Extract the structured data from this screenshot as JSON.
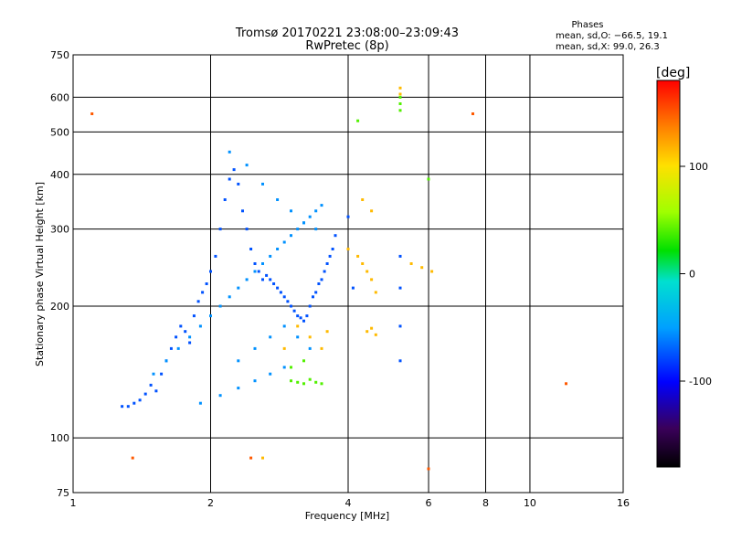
{
  "chart_data": {
    "type": "scatter",
    "title": "Tromsø 20170221 23:08:00–23:09:43",
    "subtitle": "RwPretec (8p)",
    "xlabel": "Frequency [MHz]",
    "ylabel": "Stationary phase Virtual Height [km]",
    "x_scale": "log",
    "y_scale": "log",
    "xlim": [
      1,
      16
    ],
    "ylim": [
      75,
      750
    ],
    "x_ticks": [
      1,
      2,
      4,
      6,
      8,
      10,
      16
    ],
    "y_ticks": [
      75,
      100,
      200,
      300,
      400,
      500,
      600,
      750
    ],
    "grid": true,
    "color_scale": {
      "label": "[deg]",
      "range": [
        -180,
        180
      ],
      "ticks": [
        100,
        0,
        -100
      ]
    },
    "phases_box": {
      "title": "Phases",
      "line1": "mean, sd,O: −66.5, 19.1",
      "line2": "mean, sd,X:  99.0, 26.3"
    },
    "series": [
      {
        "trace": "O",
        "color_value": -75,
        "x": [
          1.28,
          1.32,
          1.36,
          1.4,
          1.44,
          1.48,
          1.52,
          1.56,
          1.6,
          1.64,
          1.68,
          1.72,
          1.76,
          1.8,
          1.84,
          1.88,
          1.92,
          1.96,
          2.0,
          2.05,
          2.1,
          2.15,
          2.2,
          2.25,
          2.3,
          2.35,
          2.4,
          2.45,
          2.5,
          2.55,
          2.6,
          2.65,
          2.7,
          2.75,
          2.8,
          2.85,
          2.9,
          2.95,
          3.0,
          3.05,
          3.1,
          3.15,
          3.2,
          3.25,
          3.3,
          3.35,
          3.4,
          3.45,
          3.5,
          3.55,
          3.6,
          3.65,
          3.7,
          3.75,
          4.0,
          4.1,
          5.2,
          5.2,
          5.2,
          5.2
        ],
        "y": [
          118,
          118,
          120,
          122,
          126,
          132,
          128,
          140,
          150,
          160,
          170,
          180,
          175,
          165,
          190,
          205,
          215,
          225,
          240,
          260,
          300,
          350,
          390,
          410,
          380,
          330,
          300,
          270,
          250,
          240,
          230,
          235,
          230,
          225,
          220,
          215,
          210,
          205,
          200,
          195,
          190,
          188,
          185,
          190,
          200,
          210,
          215,
          225,
          230,
          240,
          250,
          260,
          270,
          290,
          320,
          220,
          260,
          220,
          180,
          150
        ]
      },
      {
        "trace": "O-scatter",
        "color_value": -55,
        "x": [
          1.5,
          1.6,
          1.7,
          1.8,
          1.9,
          2.0,
          2.1,
          2.2,
          2.3,
          2.4,
          2.5,
          2.6,
          2.7,
          2.8,
          2.9,
          3.0,
          3.1,
          3.2,
          3.3,
          3.4,
          3.5,
          2.2,
          2.4,
          2.6,
          2.8,
          3.0,
          3.2,
          3.4,
          2.3,
          2.5,
          2.7,
          2.9,
          3.1,
          3.3,
          1.9,
          2.1,
          2.3,
          2.5,
          2.7,
          2.9
        ],
        "y": [
          140,
          150,
          160,
          170,
          180,
          190,
          200,
          210,
          220,
          230,
          240,
          250,
          260,
          270,
          280,
          290,
          300,
          310,
          320,
          330,
          340,
          450,
          420,
          380,
          350,
          330,
          310,
          300,
          150,
          160,
          170,
          180,
          170,
          160,
          120,
          125,
          130,
          135,
          140,
          145
        ]
      },
      {
        "trace": "X",
        "color_value": 115,
        "x": [
          2.6,
          2.9,
          3.1,
          3.3,
          3.5,
          3.6,
          4.0,
          4.2,
          4.3,
          4.4,
          4.5,
          4.6,
          4.3,
          4.5,
          5.5,
          5.8,
          6.1,
          5.2,
          5.2,
          4.4,
          4.5,
          4.6
        ],
        "y": [
          90,
          160,
          180,
          170,
          160,
          175,
          270,
          260,
          250,
          240,
          230,
          215,
          350,
          330,
          250,
          245,
          240,
          630,
          610,
          175,
          178,
          172
        ]
      },
      {
        "trace": "other",
        "color_value": 40,
        "x": [
          3.0,
          3.1,
          3.2,
          3.3,
          3.4,
          3.5,
          5.2,
          5.2,
          5.2,
          4.2,
          6.0,
          3.0,
          3.2
        ],
        "y": [
          135,
          134,
          133,
          136,
          134,
          133,
          600,
          580,
          560,
          530,
          390,
          145,
          150
        ]
      },
      {
        "trace": "outliers",
        "color_value": 150,
        "x": [
          1.1,
          7.5,
          12.0,
          1.35,
          2.45,
          6.0
        ],
        "y": [
          550,
          550,
          133,
          90,
          90,
          85
        ]
      }
    ]
  }
}
